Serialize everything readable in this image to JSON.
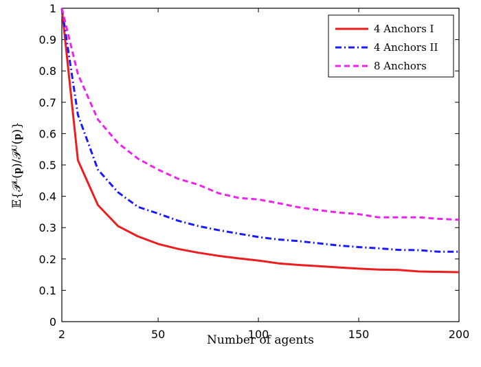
{
  "chart_data": {
    "type": "line",
    "xlabel": "Number of agents",
    "ylabel": "𝔼{𝒫ᴸ(𝐩)/𝒫ᵁ(𝐩)}",
    "xlim": [
      2,
      200
    ],
    "ylim": [
      0,
      1
    ],
    "xticks": [
      2,
      50,
      100,
      150,
      200
    ],
    "yticks": [
      0,
      0.1,
      0.2,
      0.3,
      0.4,
      0.5,
      0.6,
      0.7,
      0.8,
      0.9,
      1
    ],
    "grid": false,
    "legend_position": "top-right",
    "x": [
      2,
      10,
      20,
      30,
      40,
      50,
      60,
      70,
      80,
      90,
      100,
      110,
      120,
      130,
      140,
      150,
      160,
      170,
      180,
      190,
      200
    ],
    "series": [
      {
        "name": "4 Anchors I",
        "color": "#ee1c1c",
        "dash": "solid",
        "values": [
          1.0,
          0.515,
          0.372,
          0.305,
          0.272,
          0.248,
          0.232,
          0.22,
          0.21,
          0.202,
          0.195,
          0.186,
          0.181,
          0.177,
          0.173,
          0.169,
          0.166,
          0.165,
          0.16,
          0.159,
          0.158
        ]
      },
      {
        "name": "4 Anchors II",
        "color": "#1a1aff",
        "dash": "dashdot",
        "values": [
          1.0,
          0.66,
          0.485,
          0.413,
          0.366,
          0.345,
          0.322,
          0.305,
          0.292,
          0.281,
          0.27,
          0.262,
          0.257,
          0.25,
          0.243,
          0.238,
          0.234,
          0.229,
          0.228,
          0.223,
          0.223
        ]
      },
      {
        "name": "8 Anchors",
        "color": "#ee22ee",
        "dash": "dashed",
        "values": [
          1.0,
          0.79,
          0.645,
          0.57,
          0.52,
          0.485,
          0.456,
          0.437,
          0.41,
          0.395,
          0.39,
          0.378,
          0.365,
          0.356,
          0.348,
          0.343,
          0.333,
          0.333,
          0.333,
          0.328,
          0.325
        ]
      }
    ]
  }
}
